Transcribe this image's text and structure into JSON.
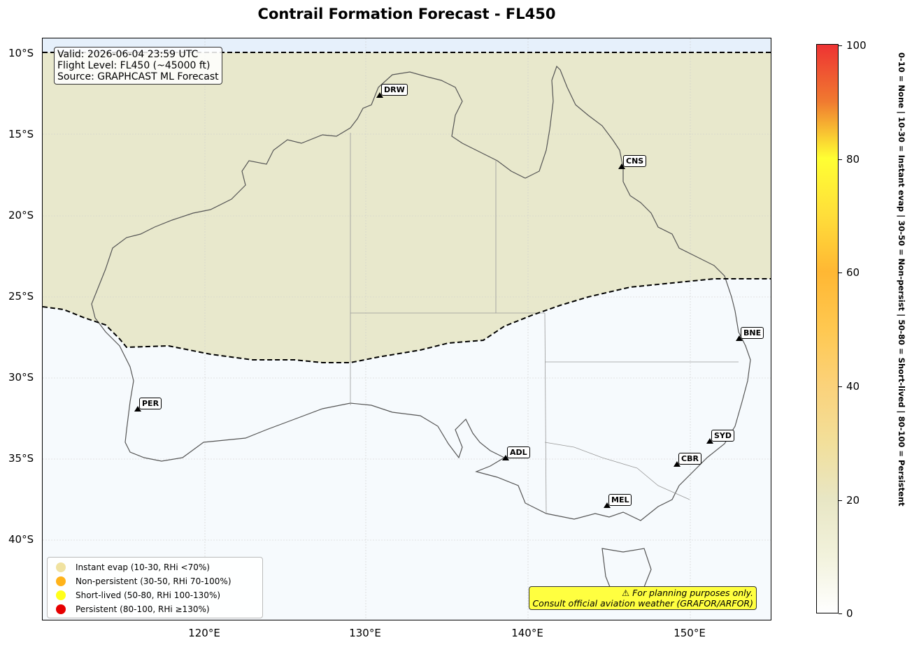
{
  "title": "Contrail Formation Forecast - FL450",
  "info": {
    "valid": "Valid: 2026-06-04 23:59 UTC",
    "flight_level": "Flight Level: FL450 (~45000 ft)",
    "source": "Source: GRAPHCAST ML Forecast"
  },
  "y_ticks": [
    "10°S",
    "15°S",
    "20°S",
    "25°S",
    "30°S",
    "35°S",
    "40°S"
  ],
  "x_ticks": [
    "120°E",
    "130°E",
    "140°E",
    "150°E"
  ],
  "cities": [
    "DRW",
    "CNS",
    "BNE",
    "PER",
    "SYD",
    "ADL",
    "CBR",
    "MEL"
  ],
  "legend": [
    {
      "label": "Instant evap (10-30, RHi <70%)",
      "color": "#f0e2a0"
    },
    {
      "label": "Non-persistent (30-50, RHi 70-100%)",
      "color": "#ffb31a"
    },
    {
      "label": "Short-lived (50-80, RHi 100-130%)",
      "color": "#ffff1a"
    },
    {
      "label": "Persistent (80-100, RHi ≥130%)",
      "color": "#e60000"
    }
  ],
  "warning": {
    "line1": "⚠ For planning purposes only.",
    "line2": "Consult official aviation weather (GRAFOR/ARFOR)"
  },
  "colorbar": {
    "ticks": [
      "0",
      "20",
      "40",
      "60",
      "80",
      "100"
    ],
    "label": "0-10 = None  |  10-30 = Instant evap  |  30-50 = Non-persist  |  50-80 = Short-lived  |  80-100 = Persistent"
  },
  "colors": {
    "instant_evap_zone": "#e8e8cc",
    "none_zone": "#f6fafd",
    "coast": "#555555"
  }
}
